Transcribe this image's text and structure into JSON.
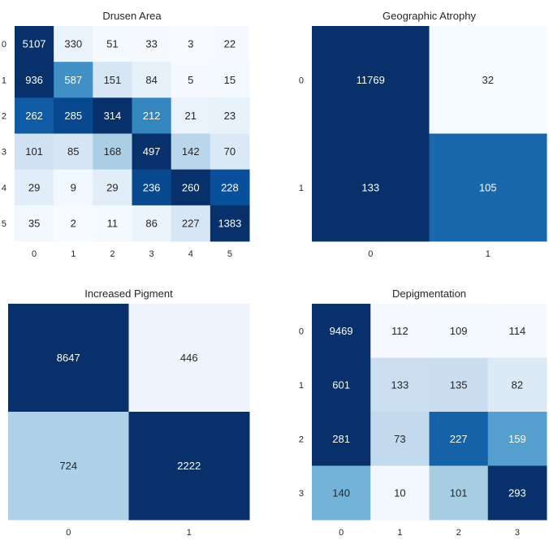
{
  "chart_data": [
    {
      "type": "heatmap",
      "title": "Drusen Area",
      "x_ticks": [
        "0",
        "1",
        "2",
        "3",
        "4",
        "5"
      ],
      "y_ticks": [
        "0",
        "1",
        "2",
        "3",
        "4",
        "5"
      ],
      "colormap": "Blues",
      "normalization": "row",
      "values": [
        [
          5107,
          330,
          51,
          33,
          3,
          22
        ],
        [
          936,
          587,
          151,
          84,
          5,
          15
        ],
        [
          262,
          285,
          314,
          212,
          21,
          23
        ],
        [
          101,
          85,
          168,
          497,
          142,
          70
        ],
        [
          29,
          9,
          29,
          236,
          260,
          228
        ],
        [
          35,
          2,
          11,
          86,
          227,
          1383
        ]
      ]
    },
    {
      "type": "heatmap",
      "title": "Geographic Atrophy",
      "x_ticks": [
        "0",
        "1"
      ],
      "y_ticks": [
        "0",
        "1"
      ],
      "colormap": "Blues",
      "normalization": "row",
      "values": [
        [
          11769,
          32
        ],
        [
          133,
          105
        ]
      ]
    },
    {
      "type": "heatmap",
      "title": "Increased Pigment",
      "x_ticks": [
        "0",
        "1"
      ],
      "y_ticks": [
        "0",
        "1"
      ],
      "colormap": "Blues",
      "normalization": "row",
      "values": [
        [
          8647,
          446
        ],
        [
          724,
          2222
        ]
      ]
    },
    {
      "type": "heatmap",
      "title": "Depigmentation",
      "x_ticks": [
        "0",
        "1",
        "2",
        "3"
      ],
      "y_ticks": [
        "0",
        "1",
        "2",
        "3"
      ],
      "colormap": "Blues",
      "normalization": "row",
      "values": [
        [
          9469,
          112,
          109,
          114
        ],
        [
          601,
          133,
          135,
          82
        ],
        [
          281,
          73,
          227,
          159
        ],
        [
          140,
          10,
          101,
          293
        ]
      ]
    }
  ]
}
